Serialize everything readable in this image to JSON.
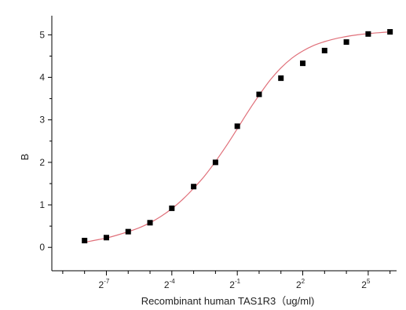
{
  "chart_data": {
    "type": "scatter",
    "xlabel": "Recombinant human  TAS1R3（ug/ml)",
    "ylabel": "B",
    "x_scale": "log2",
    "xlim_log2": [
      -9.5,
      6.3
    ],
    "ylim": [
      -0.55,
      5.45
    ],
    "x_tick_labels": [
      {
        "base": "2",
        "exp": "-7"
      },
      {
        "base": "2",
        "exp": "-4"
      },
      {
        "base": "2",
        "exp": "-1"
      },
      {
        "base": "2",
        "exp": "2"
      },
      {
        "base": "2",
        "exp": "5"
      }
    ],
    "y_ticks": [
      0,
      1,
      2,
      3,
      4,
      5
    ],
    "grid": false,
    "series": [
      {
        "type": "scatter",
        "marker": "square",
        "color": "#000000",
        "x_log2": [
          -8,
          -7,
          -6,
          -5,
          -4,
          -3,
          -2,
          -1,
          0,
          1,
          2,
          3,
          4,
          5,
          6
        ],
        "y": [
          0.16,
          0.23,
          0.37,
          0.58,
          0.92,
          1.43,
          2.0,
          2.85,
          3.6,
          3.98,
          4.33,
          4.63,
          4.83,
          5.02,
          5.07
        ]
      },
      {
        "type": "line",
        "fit": "sigmoid",
        "color": "#e0707a",
        "x_log2": [
          -8,
          -7.5,
          -7,
          -6.5,
          -6,
          -5.5,
          -5,
          -4.5,
          -4,
          -3.5,
          -3,
          -2.5,
          -2,
          -1.5,
          -1,
          -0.5,
          0,
          0.5,
          1,
          1.5,
          2,
          2.5,
          3,
          3.5,
          4,
          4.5,
          5,
          5.5,
          6
        ],
        "y": [
          0.12,
          0.17,
          0.22,
          0.29,
          0.37,
          0.46,
          0.58,
          0.73,
          0.91,
          1.13,
          1.39,
          1.68,
          2.02,
          2.39,
          2.79,
          3.2,
          3.58,
          3.93,
          4.22,
          4.45,
          4.62,
          4.75,
          4.84,
          4.91,
          4.96,
          5.0,
          5.03,
          5.05,
          5.07
        ]
      }
    ]
  }
}
